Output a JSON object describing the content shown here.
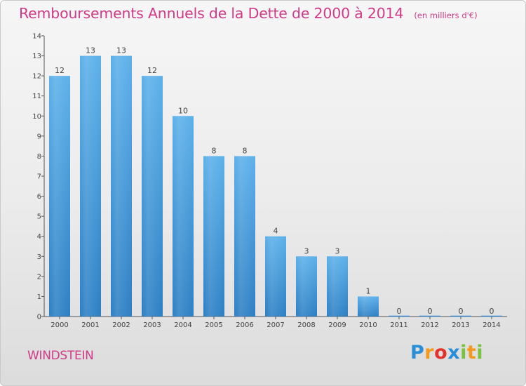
{
  "chart_data": {
    "type": "bar",
    "title": "Remboursements Annuels de la Dette de 2000 à 2014",
    "subtitle": "(en milliers d'€)",
    "xlabel": "",
    "ylabel": "",
    "categories": [
      "2000",
      "2001",
      "2002",
      "2003",
      "2004",
      "2005",
      "2006",
      "2007",
      "2008",
      "2009",
      "2010",
      "2011",
      "2012",
      "2013",
      "2014"
    ],
    "values": [
      12,
      13,
      13,
      12,
      10,
      8,
      8,
      4,
      3,
      3,
      1,
      0,
      0,
      0,
      0
    ],
    "ylim": [
      0,
      14
    ],
    "yticks": [
      0,
      1,
      2,
      3,
      4,
      5,
      6,
      7,
      8,
      9,
      10,
      11,
      12,
      13,
      14
    ],
    "grid": false,
    "bar_color": "#4a9fe0"
  },
  "footer": {
    "commune": "WINDSTEIN",
    "logo": {
      "text": "Proxiti",
      "letters": [
        "P",
        "r",
        "o",
        "x",
        "i",
        "t",
        "i"
      ],
      "colors": [
        "#2a8ed6",
        "#f39a1e",
        "#e2332b",
        "#2a8ed6",
        "#7cc242",
        "#f39a1e",
        "#7cc242"
      ]
    }
  }
}
